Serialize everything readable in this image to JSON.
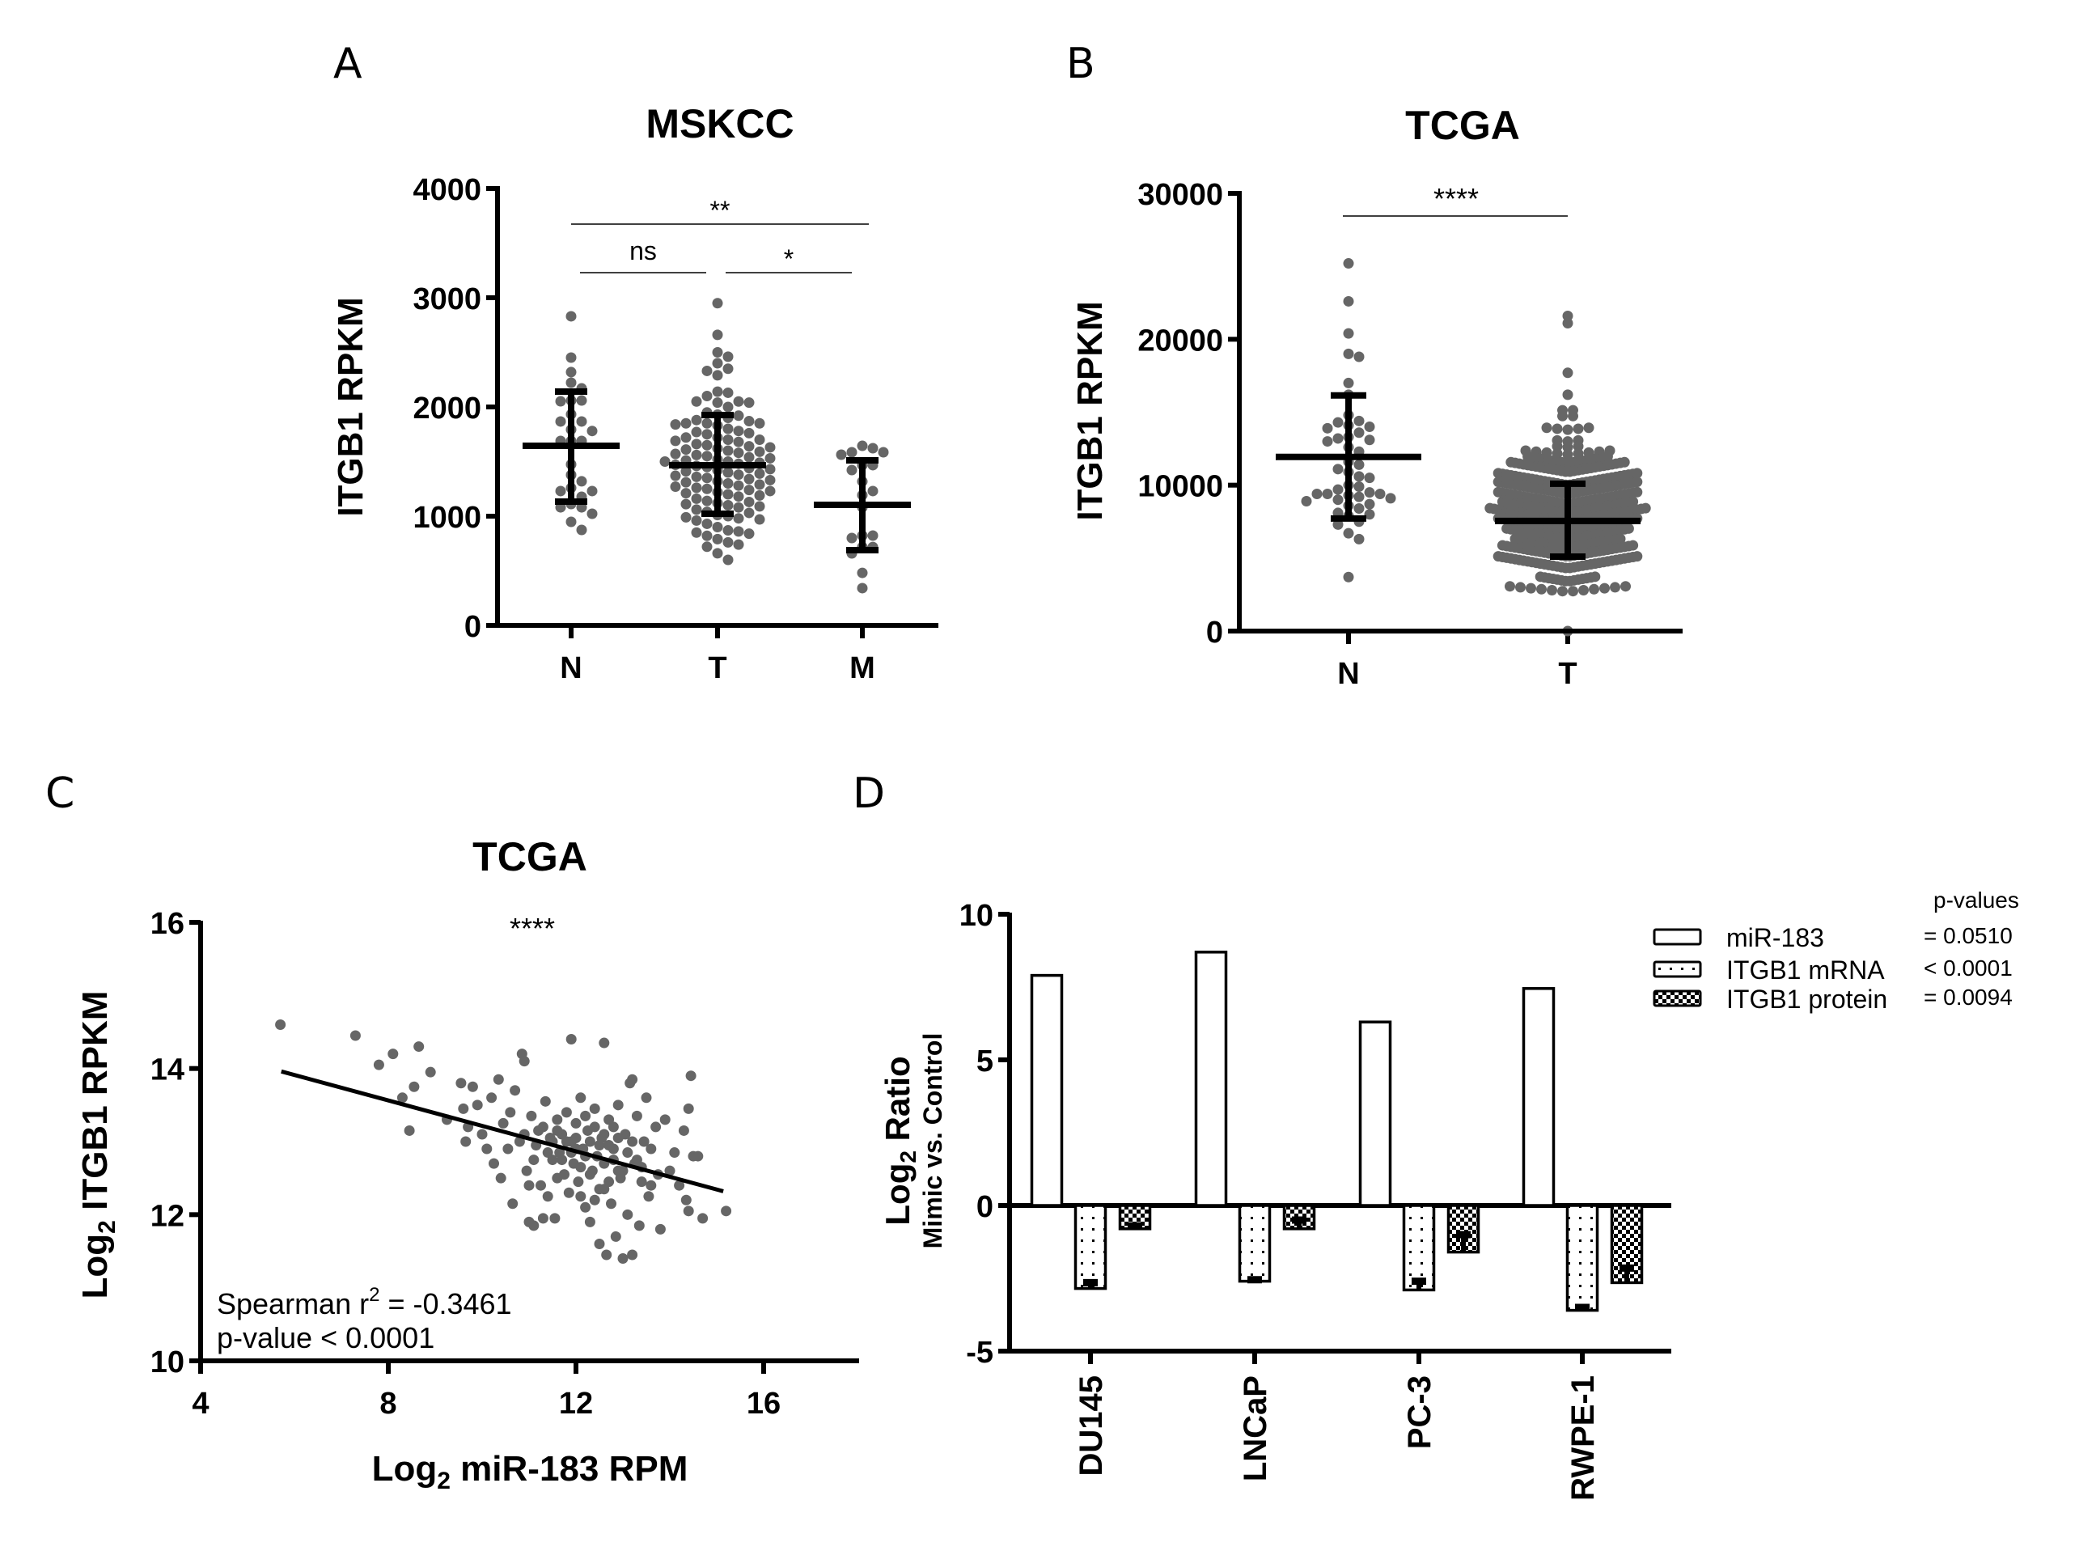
{
  "figure": {
    "panel_letters": [
      "A",
      "B",
      "C",
      "D"
    ],
    "colors": {
      "dot": "#666666",
      "axis": "#000000",
      "bar_fill": "#ffffff"
    }
  },
  "chart_data": [
    {
      "id": "A",
      "type": "scatter",
      "subtype": "dot-plot-mean-sd",
      "title": "MSKCC",
      "xlabel": "",
      "ylabel": "ITGB1 RPKM",
      "ylim": [
        0,
        4000
      ],
      "yticks": [
        "0",
        "1000",
        "2000",
        "3000",
        "4000"
      ],
      "ytick_values": [
        0,
        1000,
        2000,
        3000,
        4000
      ],
      "categories": [
        "N",
        "T",
        "M"
      ],
      "groups": [
        {
          "name": "N",
          "mean": 1644,
          "sd_upper": 2141,
          "sd_lower": 1133,
          "values": [
            2830,
            2452,
            2319,
            2222,
            2170,
            2059,
            2059,
            2052,
            1933,
            1867,
            1867,
            1793,
            1780,
            1689,
            1689,
            1689,
            1474,
            1378,
            1319,
            1259,
            1230,
            1230,
            1178,
            1111,
            1081,
            1081,
            1022,
            948,
            874
          ]
        },
        {
          "name": "T",
          "mean": 1467,
          "sd_upper": 1926,
          "sd_lower": 1022,
          "values": [
            2950,
            2660,
            2500,
            2460,
            2400,
            2350,
            2330,
            2290,
            2140,
            2130,
            2100,
            2050,
            2050,
            2040,
            2040,
            2000,
            1950,
            1930,
            1920,
            1900,
            1880,
            1870,
            1850,
            1850,
            1850,
            1840,
            1830,
            1800,
            1780,
            1770,
            1760,
            1750,
            1720,
            1720,
            1700,
            1700,
            1690,
            1680,
            1660,
            1650,
            1640,
            1630,
            1620,
            1610,
            1600,
            1590,
            1580,
            1570,
            1560,
            1550,
            1540,
            1530,
            1520,
            1510,
            1500,
            1500,
            1490,
            1480,
            1470,
            1460,
            1450,
            1440,
            1430,
            1420,
            1410,
            1400,
            1390,
            1380,
            1370,
            1360,
            1350,
            1340,
            1330,
            1320,
            1310,
            1300,
            1290,
            1280,
            1270,
            1260,
            1250,
            1240,
            1230,
            1220,
            1210,
            1200,
            1190,
            1180,
            1160,
            1140,
            1130,
            1120,
            1110,
            1100,
            1090,
            1080,
            1060,
            1040,
            1030,
            1010,
            1000,
            990,
            980,
            970,
            960,
            930,
            900,
            870,
            860,
            850,
            840,
            820,
            790,
            760,
            740,
            720,
            660,
            600
          ]
        },
        {
          "name": "M",
          "mean": 1104,
          "sd_upper": 1511,
          "sd_lower": 689,
          "values": [
            1644,
            1622,
            1585,
            1585,
            1563,
            1467,
            1467,
            1422,
            1318,
            1230,
            1193,
            1081,
            822,
            822,
            800,
            718,
            718,
            659,
            481,
            341
          ]
        }
      ],
      "comparisons": [
        {
          "from": "N",
          "to": "M",
          "label": "**"
        },
        {
          "from": "N",
          "to": "T",
          "label": "ns"
        },
        {
          "from": "T",
          "to": "M",
          "label": "*"
        }
      ]
    },
    {
      "id": "B",
      "type": "scatter",
      "subtype": "dot-plot-mean-sd",
      "title": "TCGA",
      "xlabel": "",
      "ylabel": "ITGB1 RPKM",
      "ylim": [
        0,
        30000
      ],
      "yticks": [
        "0",
        "10000",
        "20000",
        "30000"
      ],
      "ytick_values": [
        0,
        10000,
        20000,
        30000
      ],
      "categories": [
        "N",
        "T"
      ],
      "groups": [
        {
          "name": "N",
          "mean": 11934,
          "sd_upper": 16150,
          "sd_lower": 7715,
          "values": [
            25200,
            22600,
            20400,
            19000,
            18800,
            17000,
            16200,
            14800,
            14400,
            14300,
            14100,
            14000,
            13900,
            13600,
            13300,
            13200,
            13100,
            13000,
            12600,
            12300,
            11600,
            11400,
            11100,
            10900,
            10600,
            10500,
            10000,
            9900,
            9700,
            9500,
            9400,
            9400,
            9400,
            9300,
            9200,
            9100,
            9000,
            8900,
            8700,
            8600,
            8400,
            8100,
            8000,
            7900,
            7500,
            7300,
            6700,
            6300,
            3700
          ]
        },
        {
          "name": "T",
          "mean": 7550,
          "sd_upper": 10100,
          "sd_lower": 5100,
          "bins": [
            [
              21600,
              1
            ],
            [
              21100,
              1
            ],
            [
              17700,
              1
            ],
            [
              16200,
              1
            ],
            [
              15100,
              2
            ],
            [
              14700,
              2
            ],
            [
              13800,
              5
            ],
            [
              13000,
              3
            ],
            [
              12600,
              3
            ],
            [
              12100,
              9
            ],
            [
              11500,
              20
            ],
            [
              10900,
              28
            ],
            [
              10000,
              34
            ],
            [
              9400,
              34
            ],
            [
              8700,
              34
            ],
            [
              8100,
              32
            ],
            [
              7500,
              38
            ],
            [
              6900,
              34
            ],
            [
              6300,
              30
            ],
            [
              5700,
              26
            ],
            [
              5100,
              32
            ],
            [
              4300,
              34
            ],
            [
              3400,
              14
            ],
            [
              2700,
              12
            ],
            [
              0,
              1
            ]
          ]
        }
      ],
      "comparisons": [
        {
          "from": "N",
          "to": "T",
          "label": "****"
        }
      ]
    },
    {
      "id": "C",
      "type": "scatter",
      "title": "TCGA",
      "xlabel_main": "Log",
      "xlabel_sub": "2",
      "xlabel_rest": " miR-183 RPM",
      "ylabel_main": "Log",
      "ylabel_sub": "2",
      "ylabel_rest": " ITGB1 RPKM",
      "xlim": [
        4,
        18
      ],
      "ylim": [
        10,
        16
      ],
      "xticks": [
        "4",
        "8",
        "12",
        "16"
      ],
      "xtick_values": [
        4,
        8,
        12,
        16
      ],
      "yticks": [
        "10",
        "12",
        "14",
        "16"
      ],
      "ytick_values": [
        10,
        12,
        14,
        16
      ],
      "significance": "****",
      "annotation_line1_pre": "Spearman r",
      "annotation_line1_sup": "2",
      "annotation_line1_post": " = -0.3461",
      "annotation_line2": "p-value < 0.0001",
      "regression": {
        "x1": 5.72,
        "y1": 13.96,
        "x2": 15.14,
        "y2": 12.32
      },
      "points": [
        [
          5.7,
          14.6
        ],
        [
          7.3,
          14.45
        ],
        [
          7.8,
          14.05
        ],
        [
          8.1,
          14.2
        ],
        [
          8.65,
          14.3
        ],
        [
          8.45,
          13.15
        ],
        [
          8.3,
          13.6
        ],
        [
          8.55,
          13.75
        ],
        [
          8.9,
          13.95
        ],
        [
          9.25,
          13.3
        ],
        [
          9.55,
          13.8
        ],
        [
          9.6,
          13.45
        ],
        [
          9.7,
          13.2
        ],
        [
          9.8,
          13.75
        ],
        [
          9.65,
          13.0
        ],
        [
          9.9,
          13.5
        ],
        [
          10.0,
          13.1
        ],
        [
          10.1,
          12.9
        ],
        [
          10.2,
          13.6
        ],
        [
          10.25,
          12.7
        ],
        [
          10.35,
          13.85
        ],
        [
          10.4,
          12.5
        ],
        [
          10.45,
          13.25
        ],
        [
          10.55,
          12.9
        ],
        [
          10.6,
          13.4
        ],
        [
          10.65,
          12.15
        ],
        [
          10.7,
          13.7
        ],
        [
          10.8,
          13.0
        ],
        [
          10.85,
          14.2
        ],
        [
          10.9,
          14.1
        ],
        [
          10.95,
          12.6
        ],
        [
          11.0,
          11.9
        ],
        [
          11.05,
          13.35
        ],
        [
          11.1,
          11.85
        ],
        [
          11.15,
          12.95
        ],
        [
          11.2,
          13.15
        ],
        [
          11.25,
          12.4
        ],
        [
          11.3,
          11.95
        ],
        [
          11.35,
          13.55
        ],
        [
          11.4,
          12.25
        ],
        [
          11.45,
          13.05
        ],
        [
          11.5,
          12.75
        ],
        [
          11.55,
          11.95
        ],
        [
          11.6,
          13.3
        ],
        [
          11.65,
          12.85
        ],
        [
          11.7,
          13.1
        ],
        [
          11.75,
          12.55
        ],
        [
          11.8,
          13.4
        ],
        [
          11.85,
          12.3
        ],
        [
          11.9,
          14.4
        ],
        [
          11.9,
          13.0
        ],
        [
          11.95,
          12.7
        ],
        [
          12.0,
          13.25
        ],
        [
          12.05,
          12.45
        ],
        [
          12.1,
          13.6
        ],
        [
          12.15,
          12.9
        ],
        [
          12.2,
          12.1
        ],
        [
          12.25,
          13.15
        ],
        [
          12.3,
          11.9
        ],
        [
          12.35,
          12.6
        ],
        [
          12.4,
          13.45
        ],
        [
          12.45,
          12.8
        ],
        [
          12.5,
          11.6
        ],
        [
          12.55,
          13.05
        ],
        [
          12.6,
          14.35
        ],
        [
          12.6,
          12.35
        ],
        [
          12.65,
          11.45
        ],
        [
          12.7,
          13.3
        ],
        [
          12.75,
          12.15
        ],
        [
          12.8,
          12.9
        ],
        [
          12.85,
          11.7
        ],
        [
          12.9,
          13.5
        ],
        [
          12.95,
          12.5
        ],
        [
          13.0,
          11.4
        ],
        [
          13.05,
          13.1
        ],
        [
          13.1,
          12.0
        ],
        [
          13.15,
          13.8
        ],
        [
          13.2,
          11.45
        ],
        [
          13.25,
          12.7
        ],
        [
          13.3,
          13.35
        ],
        [
          13.35,
          11.85
        ],
        [
          13.4,
          12.45
        ],
        [
          13.45,
          13.0
        ],
        [
          13.5,
          13.6
        ],
        [
          13.55,
          12.25
        ],
        [
          13.6,
          12.9
        ],
        [
          13.7,
          13.2
        ],
        [
          13.75,
          12.55
        ],
        [
          13.8,
          11.8
        ],
        [
          13.9,
          13.3
        ],
        [
          14.0,
          12.6
        ],
        [
          14.1,
          12.85
        ],
        [
          14.2,
          12.4
        ],
        [
          14.3,
          13.15
        ],
        [
          14.35,
          12.2
        ],
        [
          14.4,
          12.05
        ],
        [
          14.45,
          13.9
        ],
        [
          14.5,
          12.8
        ],
        [
          14.7,
          11.95
        ],
        [
          14.6,
          12.8
        ],
        [
          15.2,
          12.05
        ],
        [
          14.4,
          13.45
        ],
        [
          13.2,
          13.85
        ],
        [
          12.4,
          12.2
        ],
        [
          11.3,
          13.2
        ],
        [
          11.6,
          12.5
        ],
        [
          12.0,
          12.9
        ],
        [
          12.3,
          13.0
        ],
        [
          12.6,
          12.7
        ],
        [
          12.8,
          13.2
        ],
        [
          13.0,
          12.6
        ],
        [
          11.8,
          13.0
        ],
        [
          12.2,
          12.8
        ],
        [
          12.5,
          12.95
        ],
        [
          12.7,
          12.45
        ],
        [
          13.1,
          12.85
        ],
        [
          11.5,
          13.0
        ],
        [
          11.9,
          12.85
        ],
        [
          12.1,
          12.65
        ],
        [
          12.4,
          13.2
        ],
        [
          12.9,
          13.05
        ],
        [
          13.3,
          12.75
        ],
        [
          11.7,
          12.75
        ],
        [
          12.0,
          13.05
        ],
        [
          12.3,
          12.55
        ],
        [
          12.6,
          13.1
        ],
        [
          12.9,
          12.6
        ],
        [
          13.2,
          13.0
        ],
        [
          11.4,
          12.85
        ],
        [
          11.6,
          13.15
        ],
        [
          12.2,
          13.35
        ],
        [
          12.5,
          12.35
        ],
        [
          12.8,
          12.75
        ],
        [
          13.4,
          12.65
        ],
        [
          11.1,
          12.75
        ],
        [
          10.9,
          13.1
        ],
        [
          11.0,
          12.4
        ],
        [
          12.7,
          12.95
        ],
        [
          13.6,
          12.4
        ],
        [
          12.1,
          12.25
        ]
      ]
    },
    {
      "id": "D",
      "type": "bar",
      "title": "",
      "ylabel_main": "Log",
      "ylabel_sub": "2",
      "ylabel_rest": " Ratio",
      "ylabel_line2": "Mimic vs. Control",
      "ylim": [
        -5,
        10
      ],
      "yticks": [
        "-5",
        "0",
        "5",
        "10"
      ],
      "ytick_values": [
        -5,
        0,
        5,
        10
      ],
      "categories": [
        "DU145",
        "LNCaP",
        "PC-3",
        "RWPE-1"
      ],
      "series": [
        {
          "name": "miR-183",
          "pattern": "open",
          "values": [
            7.9,
            8.7,
            6.3,
            7.45
          ],
          "error": [
            0,
            0,
            0,
            0
          ]
        },
        {
          "name": "ITGB1 mRNA",
          "pattern": "dotted",
          "values": [
            -2.85,
            -2.6,
            -2.9,
            -3.6
          ],
          "error": [
            0.2,
            0.05,
            0.3,
            0.1
          ]
        },
        {
          "name": "ITGB1 protein",
          "pattern": "checker",
          "values": [
            -0.8,
            -0.8,
            -1.6,
            -2.65
          ],
          "error": [
            0.1,
            0.3,
            0.6,
            0.5
          ]
        }
      ],
      "legend": {
        "header": "p-values",
        "placement": "top-right",
        "pvalues": [
          "= 0.0510",
          "< 0.0001",
          "= 0.0094"
        ]
      }
    }
  ]
}
